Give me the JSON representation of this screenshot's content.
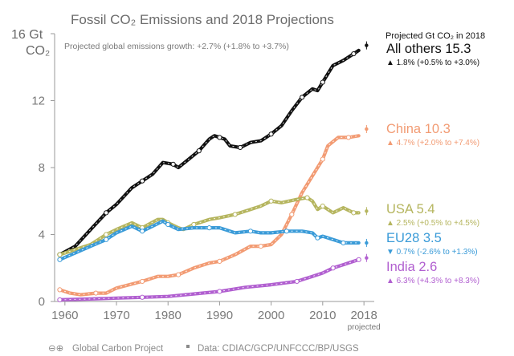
{
  "chart_data": {
    "type": "line",
    "title": "Fossil CO₂ Emissions and 2018 Projections",
    "subtitle": "Projected global emissions growth: +2.7% (+1.8% to +3.7%)",
    "ylabel": "16 Gt CO₂",
    "ylabel_top": "16 Gt",
    "ylabel_bottom": "CO₂",
    "xlabel": "",
    "xlim": [
      1958,
      2020
    ],
    "ylim": [
      0,
      16
    ],
    "yticks": [
      0,
      4,
      8,
      12
    ],
    "xticks": [
      {
        "value": 1960,
        "label": "1960"
      },
      {
        "value": 1970,
        "label": "1970"
      },
      {
        "value": 1980,
        "label": "1980"
      },
      {
        "value": 1990,
        "label": "1990"
      },
      {
        "value": 2000,
        "label": "2000"
      },
      {
        "value": 2010,
        "label": "2010"
      },
      {
        "value": 2018,
        "label": "2018"
      }
    ],
    "projected_label": "projected",
    "legend_header": "Projected Gt CO₂ in 2018",
    "series": [
      {
        "name": "All others 15.3",
        "color": "#111111",
        "rate": "▲ 1.8% (+0.5% to +3.0%)",
        "projection": 15.3,
        "points": [
          [
            1959,
            2.8
          ],
          [
            1962,
            3.3
          ],
          [
            1965,
            4.3
          ],
          [
            1968,
            5.3
          ],
          [
            1970,
            5.8
          ],
          [
            1973,
            6.8
          ],
          [
            1975,
            7.2
          ],
          [
            1977,
            7.6
          ],
          [
            1979,
            8.3
          ],
          [
            1981,
            8.2
          ],
          [
            1982,
            8.0
          ],
          [
            1984,
            8.5
          ],
          [
            1986,
            9.0
          ],
          [
            1988,
            9.7
          ],
          [
            1989,
            9.9
          ],
          [
            1990,
            9.8
          ],
          [
            1991,
            9.7
          ],
          [
            1992,
            9.3
          ],
          [
            1994,
            9.2
          ],
          [
            1996,
            9.5
          ],
          [
            1998,
            9.6
          ],
          [
            2000,
            10.0
          ],
          [
            2002,
            10.5
          ],
          [
            2004,
            11.4
          ],
          [
            2006,
            12.2
          ],
          [
            2008,
            12.7
          ],
          [
            2009,
            12.6
          ],
          [
            2010,
            13.1
          ],
          [
            2012,
            14.1
          ],
          [
            2014,
            14.4
          ],
          [
            2016,
            14.8
          ],
          [
            2017,
            15.0
          ]
        ]
      },
      {
        "name": "China 10.3",
        "color": "#f29b73",
        "rate": "▲ 4.7% (+2.0% to +7.4%)",
        "projection": 10.3,
        "points": [
          [
            1959,
            0.7
          ],
          [
            1961,
            0.5
          ],
          [
            1963,
            0.4
          ],
          [
            1966,
            0.5
          ],
          [
            1968,
            0.5
          ],
          [
            1970,
            0.8
          ],
          [
            1975,
            1.2
          ],
          [
            1978,
            1.5
          ],
          [
            1980,
            1.5
          ],
          [
            1982,
            1.6
          ],
          [
            1985,
            2.0
          ],
          [
            1988,
            2.3
          ],
          [
            1990,
            2.4
          ],
          [
            1993,
            2.8
          ],
          [
            1996,
            3.3
          ],
          [
            1998,
            3.3
          ],
          [
            2000,
            3.4
          ],
          [
            2002,
            4.0
          ],
          [
            2004,
            5.2
          ],
          [
            2006,
            6.5
          ],
          [
            2008,
            7.5
          ],
          [
            2010,
            8.5
          ],
          [
            2011,
            9.3
          ],
          [
            2013,
            9.8
          ],
          [
            2015,
            9.8
          ],
          [
            2017,
            9.9
          ]
        ]
      },
      {
        "name": "USA 5.4",
        "color": "#b5b55e",
        "rate": "▲ 2.5% (+0.5% to +4.5%)",
        "projection": 5.4,
        "points": [
          [
            1959,
            2.8
          ],
          [
            1962,
            3.1
          ],
          [
            1965,
            3.4
          ],
          [
            1968,
            4.0
          ],
          [
            1970,
            4.3
          ],
          [
            1973,
            4.7
          ],
          [
            1975,
            4.4
          ],
          [
            1978,
            4.9
          ],
          [
            1979,
            4.9
          ],
          [
            1980,
            4.7
          ],
          [
            1982,
            4.4
          ],
          [
            1983,
            4.3
          ],
          [
            1985,
            4.6
          ],
          [
            1988,
            4.9
          ],
          [
            1990,
            5.0
          ],
          [
            1993,
            5.2
          ],
          [
            1996,
            5.5
          ],
          [
            1998,
            5.7
          ],
          [
            2000,
            6.0
          ],
          [
            2002,
            5.9
          ],
          [
            2005,
            6.1
          ],
          [
            2007,
            6.2
          ],
          [
            2008,
            6.0
          ],
          [
            2009,
            5.5
          ],
          [
            2010,
            5.7
          ],
          [
            2012,
            5.3
          ],
          [
            2014,
            5.6
          ],
          [
            2016,
            5.3
          ],
          [
            2017,
            5.3
          ]
        ]
      },
      {
        "name": "EU28 3.5",
        "color": "#3a9bd8",
        "rate": "▼ 0.7% (-2.6% to +1.3%)",
        "projection": 3.5,
        "points": [
          [
            1959,
            2.5
          ],
          [
            1962,
            2.9
          ],
          [
            1965,
            3.3
          ],
          [
            1968,
            3.7
          ],
          [
            1970,
            4.1
          ],
          [
            1973,
            4.5
          ],
          [
            1975,
            4.2
          ],
          [
            1977,
            4.5
          ],
          [
            1979,
            4.8
          ],
          [
            1980,
            4.6
          ],
          [
            1982,
            4.3
          ],
          [
            1985,
            4.4
          ],
          [
            1988,
            4.4
          ],
          [
            1990,
            4.4
          ],
          [
            1993,
            4.1
          ],
          [
            1996,
            4.2
          ],
          [
            1998,
            4.1
          ],
          [
            2000,
            4.1
          ],
          [
            2003,
            4.2
          ],
          [
            2006,
            4.2
          ],
          [
            2008,
            4.1
          ],
          [
            2009,
            3.8
          ],
          [
            2010,
            3.9
          ],
          [
            2012,
            3.7
          ],
          [
            2014,
            3.5
          ],
          [
            2016,
            3.5
          ],
          [
            2017,
            3.5
          ]
        ]
      },
      {
        "name": "India 2.6",
        "color": "#b15fd0",
        "rate": "▲ 6.3% (+4.3% to +8.3%)",
        "projection": 2.6,
        "points": [
          [
            1959,
            0.1
          ],
          [
            1965,
            0.15
          ],
          [
            1970,
            0.2
          ],
          [
            1975,
            0.25
          ],
          [
            1980,
            0.3
          ],
          [
            1985,
            0.45
          ],
          [
            1990,
            0.6
          ],
          [
            1995,
            0.85
          ],
          [
            2000,
            1.0
          ],
          [
            2005,
            1.2
          ],
          [
            2008,
            1.5
          ],
          [
            2010,
            1.7
          ],
          [
            2012,
            2.0
          ],
          [
            2014,
            2.2
          ],
          [
            2016,
            2.4
          ],
          [
            2017,
            2.5
          ]
        ]
      }
    ]
  },
  "footer": {
    "logo_text": "⊖⊕",
    "org": "Global Carbon Project",
    "data_source": "Data: CDIAC/GCP/UNFCCC/BP/USGS"
  }
}
